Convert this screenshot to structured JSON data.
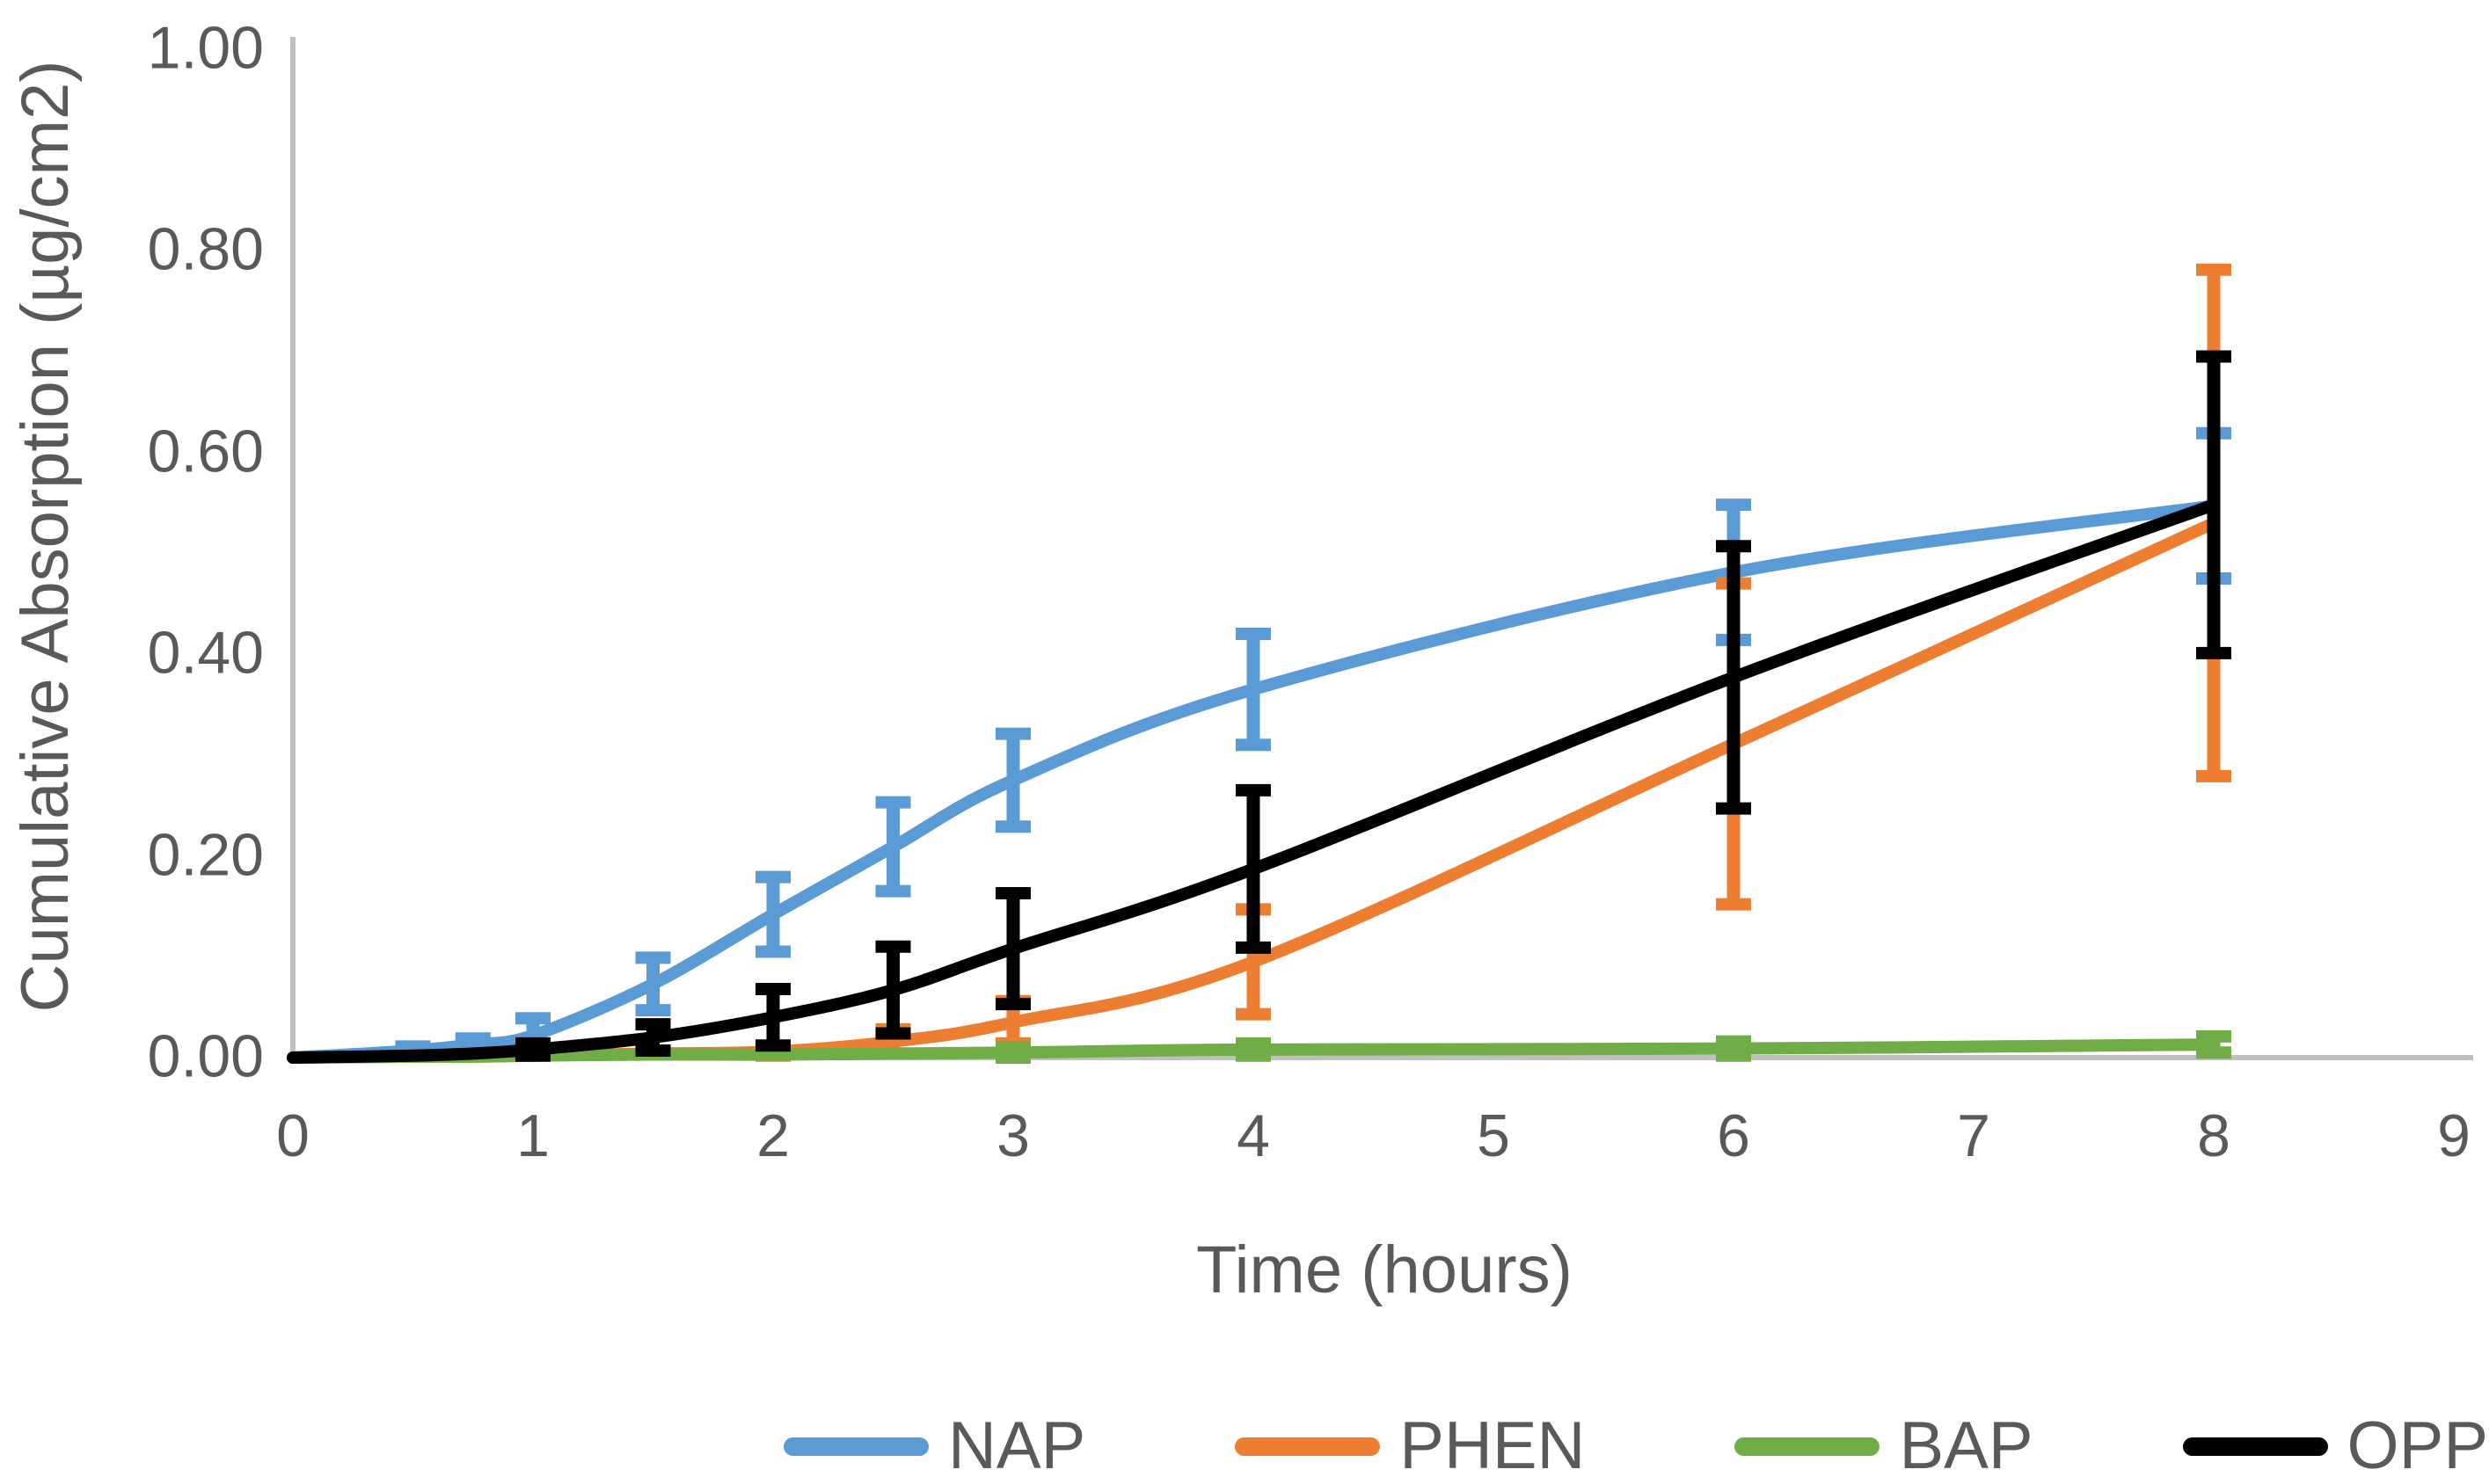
{
  "chart_data": {
    "type": "line",
    "title": "",
    "xlabel": "Time (hours)",
    "ylabel": "Cumulative Absorption (µg/cm2)",
    "xlim": [
      0,
      9
    ],
    "ylim": [
      0,
      1.0
    ],
    "x_tick_labels": [
      "0",
      "1",
      "2",
      "3",
      "4",
      "5",
      "6",
      "7",
      "8",
      "9"
    ],
    "y_tick_labels": [
      "0.00",
      "0.20",
      "0.40",
      "0.60",
      "0.80",
      "1.00"
    ],
    "grid": false,
    "legend_position": "bottom",
    "axis_color": "#BFBFBF",
    "text_color": "#595959",
    "x": [
      0,
      0.5,
      0.75,
      1,
      1.5,
      2,
      2.5,
      3,
      4,
      6,
      8
    ],
    "series": [
      {
        "name": "NAP",
        "color": "#5B9BD5",
        "values": [
          0,
          0.007,
          0.013,
          0.022,
          0.073,
          0.142,
          0.209,
          0.275,
          0.365,
          0.481,
          0.547
        ],
        "errors": [
          0,
          0.004,
          0.006,
          0.017,
          0.026,
          0.037,
          0.044,
          0.046,
          0.055,
          0.067,
          0.072
        ]
      },
      {
        "name": "PHEN",
        "color": "#ED7D31",
        "values": [
          0,
          0.001,
          0.001,
          0.002,
          0.004,
          0.006,
          0.016,
          0.035,
          0.095,
          0.311,
          0.53
        ],
        "errors": [
          0,
          0,
          0,
          0,
          0.002,
          0.004,
          0.012,
          0.021,
          0.052,
          0.159,
          0.251
        ]
      },
      {
        "name": "BAP",
        "color": "#70AD47",
        "values": [
          0,
          0.001,
          0.001,
          0.002,
          0.003,
          0.003,
          0.004,
          0.005,
          0.008,
          0.009,
          0.013
        ],
        "errors": [
          0,
          0,
          0,
          0,
          0.002,
          0.002,
          0.003,
          0.005,
          0.006,
          0.007,
          0.008
        ]
      },
      {
        "name": "OPP",
        "color": "#000000",
        "values": [
          0,
          0.002,
          0.004,
          0.008,
          0.02,
          0.04,
          0.067,
          0.108,
          0.187,
          0.377,
          0.548
        ],
        "errors": [
          0,
          0,
          0,
          0.006,
          0.013,
          0.028,
          0.043,
          0.055,
          0.078,
          0.13,
          0.147
        ]
      }
    ]
  }
}
